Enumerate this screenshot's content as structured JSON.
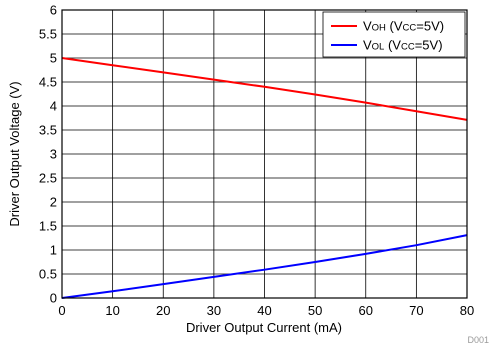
{
  "chart_data": {
    "type": "line",
    "xlabel": "Driver Output Current (mA)",
    "ylabel": "Driver Output Voltage (V)",
    "xlim": [
      0,
      80
    ],
    "ylim": [
      0,
      6
    ],
    "xticks": [
      "0",
      "10",
      "20",
      "30",
      "40",
      "50",
      "60",
      "70",
      "80"
    ],
    "yticks": [
      "0",
      "0.5",
      "1",
      "1.5",
      "2",
      "2.5",
      "3",
      "3.5",
      "4",
      "4.5",
      "5",
      "5.5",
      "6"
    ],
    "grid": true,
    "legend_position": "top-right",
    "series": [
      {
        "name": "VOH (VCC=5V)",
        "legend": {
          "main": "V",
          "sub1": "OH",
          "mid": " (V",
          "sub2": "CC",
          "tail": "=5V)"
        },
        "color": "#ff0000",
        "x": [
          0,
          10,
          20,
          30,
          40,
          50,
          60,
          70,
          80
        ],
        "y": [
          5.0,
          4.85,
          4.7,
          4.55,
          4.4,
          4.24,
          4.07,
          3.89,
          3.71
        ]
      },
      {
        "name": "VOL (VCC=5V)",
        "legend": {
          "main": "V",
          "sub1": "OL",
          "mid": " (V",
          "sub2": "CC",
          "tail": "=5V)"
        },
        "color": "#0000ff",
        "x": [
          0,
          10,
          20,
          30,
          40,
          50,
          60,
          70,
          80
        ],
        "y": [
          0.0,
          0.14,
          0.29,
          0.44,
          0.59,
          0.75,
          0.92,
          1.1,
          1.31
        ]
      }
    ]
  },
  "figure_code": "D001"
}
